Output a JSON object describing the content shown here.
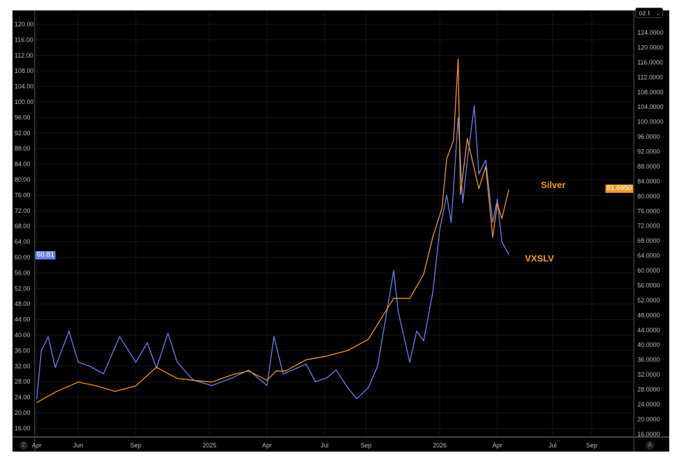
{
  "toolbar": {
    "unit_select": "oz t",
    "left_button": "Z",
    "right_button": "A"
  },
  "chart_data": {
    "type": "line",
    "title": "",
    "x_ticks": [
      {
        "label": "Apr",
        "x": 2024.25
      },
      {
        "label": "Jun",
        "x": 2024.43
      },
      {
        "label": "Sep",
        "x": 2024.68
      },
      {
        "label": "2025",
        "x": 2025.0
      },
      {
        "label": "Apr",
        "x": 2025.25
      },
      {
        "label": "Jul",
        "x": 2025.5
      },
      {
        "label": "Sep",
        "x": 2025.68
      },
      {
        "label": "2026",
        "x": 2026.0
      },
      {
        "label": "Apr",
        "x": 2026.25
      },
      {
        "label": "Jul",
        "x": 2026.49
      },
      {
        "label": "Sep",
        "x": 2026.66
      }
    ],
    "left_axis": {
      "ylim": [
        16,
        120
      ],
      "ticks": [
        "120.00",
        "116.00",
        "112.00",
        "108.00",
        "104.00",
        "100.00",
        "96.00",
        "92.00",
        "88.00",
        "84.00",
        "80.00",
        "76.00",
        "72.00",
        "68.00",
        "64.00",
        "60.00",
        "56.00",
        "52.00",
        "48.00",
        "44.00",
        "40.00",
        "36.00",
        "32.00",
        "28.00",
        "24.00",
        "20.00",
        "16.00"
      ]
    },
    "right_axis": {
      "ylim": [
        16,
        124
      ],
      "ticks": [
        "124.0000",
        "120.0000",
        "116.0000",
        "112.0000",
        "108.0000",
        "104.0000",
        "100.0000",
        "96.0000",
        "92.0000",
        "88.0000",
        "84.0000",
        "80.0000",
        "76.0000",
        "72.0000",
        "68.0000",
        "64.0000",
        "60.0000",
        "56.0000",
        "52.0000",
        "48.0000",
        "44.0000",
        "40.0000",
        "36.0000",
        "32.0000",
        "28.0000",
        "24.0000",
        "20.0000",
        "16.0000"
      ]
    },
    "series": [
      {
        "name": "Silver",
        "axis": "right",
        "color": "#f29a1f",
        "last_value": "81.6950",
        "x": [
          2024.25,
          2024.33,
          2024.43,
          2024.51,
          2024.59,
          2024.68,
          2024.77,
          2024.86,
          2024.93,
          2025.01,
          2025.1,
          2025.17,
          2025.25,
          2025.29,
          2025.33,
          2025.42,
          2025.51,
          2025.6,
          2025.69,
          2025.8,
          2025.87,
          2025.93,
          2025.97,
          2026.01,
          2026.03,
          2026.06,
          2026.08,
          2026.09,
          2026.12,
          2026.17,
          2026.2,
          2026.23,
          2026.25,
          2026.27,
          2026.3
        ],
        "y": [
          24.5,
          27.3,
          30,
          29,
          27.5,
          29,
          34,
          31,
          30.5,
          30,
          32,
          33,
          30.5,
          33,
          33,
          36,
          37,
          38.5,
          41.5,
          52.5,
          52.5,
          59,
          69,
          76.8,
          90,
          95,
          116.9,
          80.5,
          95.5,
          82,
          88,
          69,
          78,
          74,
          81.7
        ]
      },
      {
        "name": "VXSLV",
        "axis": "left",
        "color": "#6b7ff0",
        "last_value": "60.81",
        "x": [
          2024.25,
          2024.27,
          2024.3,
          2024.33,
          2024.39,
          2024.43,
          2024.48,
          2024.54,
          2024.61,
          2024.68,
          2024.73,
          2024.77,
          2024.82,
          2024.86,
          2024.93,
          2025.01,
          2025.1,
          2025.17,
          2025.25,
          2025.28,
          2025.32,
          2025.42,
          2025.46,
          2025.51,
          2025.55,
          2025.6,
          2025.64,
          2025.69,
          2025.73,
          2025.78,
          2025.8,
          2025.82,
          2025.87,
          2025.9,
          2025.93,
          2025.97,
          2026.0,
          2026.03,
          2026.05,
          2026.08,
          2026.1,
          2026.12,
          2026.15,
          2026.17,
          2026.2,
          2026.23,
          2026.25,
          2026.27,
          2026.3
        ],
        "y": [
          23.6,
          36,
          39.6,
          31.6,
          41,
          33,
          32,
          30,
          39.6,
          33,
          38,
          31.5,
          40.5,
          33,
          28.4,
          27,
          29,
          31,
          27,
          39.6,
          30,
          32.5,
          28,
          29,
          31,
          26.5,
          23.6,
          26.5,
          32,
          49.5,
          56.6,
          46,
          33,
          41,
          38.5,
          51,
          67,
          76,
          69,
          96,
          74,
          85,
          99,
          81.5,
          85,
          69,
          75,
          64,
          60.8
        ]
      }
    ]
  }
}
